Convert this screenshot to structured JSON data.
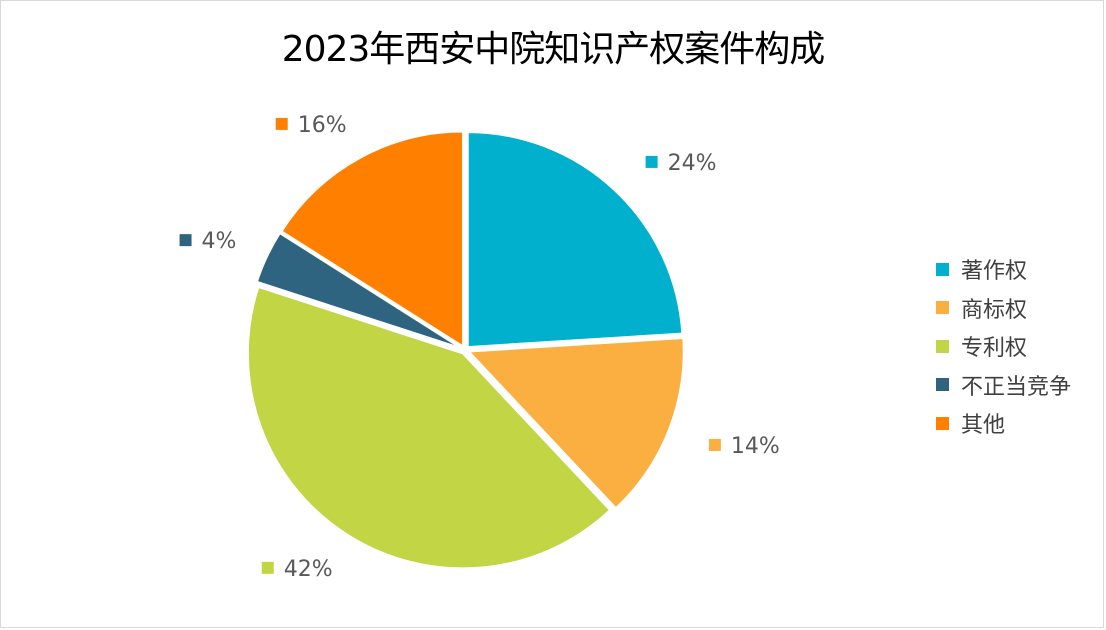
{
  "chart_data": {
    "type": "pie",
    "title": "2023年西安中院知识产权案件构成",
    "categories": [
      "著作权",
      "商标权",
      "专利权",
      "不正当竞争",
      "其他"
    ],
    "values": [
      24,
      14,
      42,
      4,
      16
    ],
    "data_labels": [
      "24%",
      "14%",
      "42%",
      "4%",
      "16%"
    ],
    "colors": [
      "#00B0CC",
      "#FBAF41",
      "#C2D545",
      "#2E6480",
      "#FF7F00"
    ],
    "legend_position": "right",
    "start_angle_deg": 0,
    "direction": "clockwise",
    "exploded": true
  }
}
